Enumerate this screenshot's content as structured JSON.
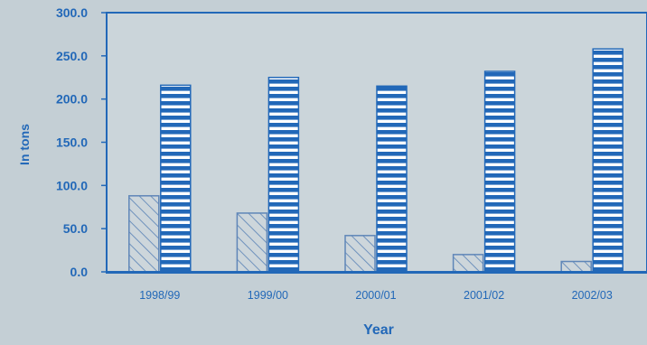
{
  "chart_data": {
    "type": "bar",
    "title": "",
    "xlabel": "Year",
    "ylabel": "In tons",
    "ylim": [
      0,
      300
    ],
    "yticks": [
      0,
      50,
      100,
      150,
      200,
      250,
      300
    ],
    "ytick_labels": [
      "0.0",
      "50.0",
      "100.0",
      "150.0",
      "200.0",
      "250.0",
      "300.0"
    ],
    "categories": [
      "1998/99",
      "1999/00",
      "2000/01",
      "2001/02",
      "2002/03"
    ],
    "series": [
      {
        "values": [
          88,
          68,
          42,
          20,
          12
        ],
        "fill": "diagonal-hatch"
      },
      {
        "values": [
          216,
          225,
          215,
          232,
          258
        ],
        "fill": "horizontal-stripes"
      }
    ],
    "grid": false,
    "legend": "none",
    "colors": {
      "primary": "#2268b8",
      "hatch": "#6f92bd",
      "background": "#c4cfd5",
      "plot_background": "#cbd5da",
      "text": "#2268b8"
    }
  }
}
